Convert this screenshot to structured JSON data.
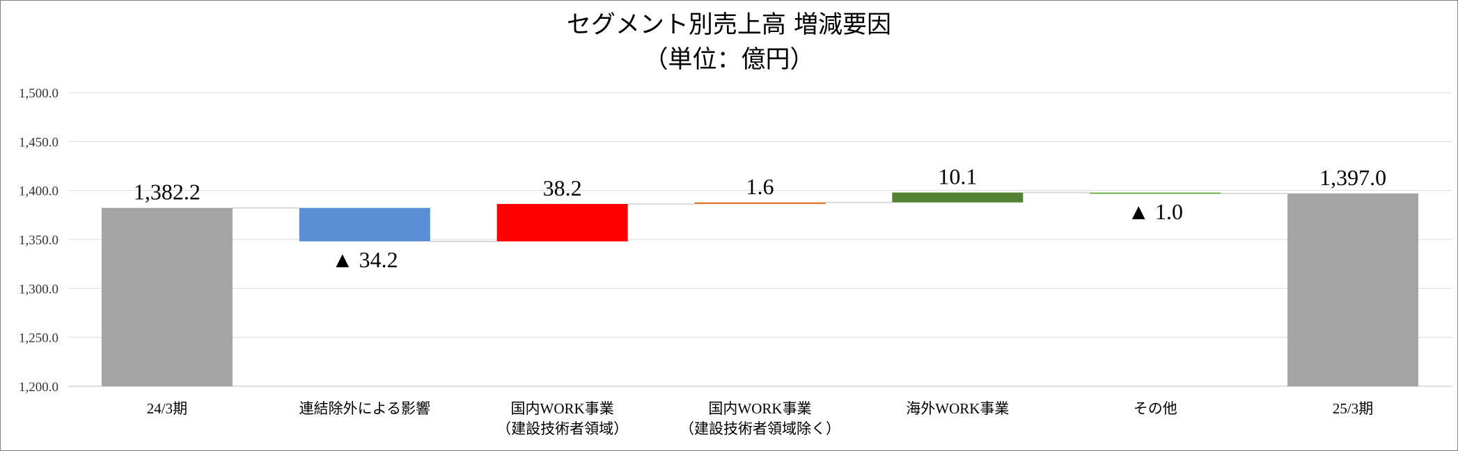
{
  "chart_data": {
    "type": "waterfall",
    "title": "セグメント別売上高  増減要因",
    "subtitle": "（単位：億円）",
    "ylim": [
      1200,
      1500
    ],
    "y_ticks": [
      "1,200.0",
      "1,250.0",
      "1,300.0",
      "1,350.0",
      "1,400.0",
      "1,450.0",
      "1,500.0"
    ],
    "grid": true,
    "colors": {
      "total": "#a5a5a5",
      "connector": "#d9d9d9",
      "gridline": "#d9d9d9",
      "axis": "#bfbfbf"
    },
    "items": [
      {
        "category": [
          "24/3期"
        ],
        "kind": "total",
        "value": 1382.2,
        "label": "1,382.2",
        "color": "#a5a5a5"
      },
      {
        "category": [
          "連結除外による影響"
        ],
        "kind": "delta",
        "value": -34.2,
        "label": "▲ 34.2",
        "color": "#5b8fd5"
      },
      {
        "category": [
          "国内WORK事業",
          "（建設技術者領域）"
        ],
        "kind": "delta",
        "value": 38.2,
        "label": "38.2",
        "color": "#ff0000"
      },
      {
        "category": [
          "国内WORK事業",
          "（建設技術者領域除く）"
        ],
        "kind": "delta",
        "value": 1.6,
        "label": "1.6",
        "color": "#e07020"
      },
      {
        "category": [
          "海外WORK事業"
        ],
        "kind": "delta",
        "value": 10.1,
        "label": "10.1",
        "color": "#548235"
      },
      {
        "category": [
          "その他"
        ],
        "kind": "delta",
        "value": -1.0,
        "label": "▲ 1.0",
        "color": "#70ad47"
      },
      {
        "category": [
          "25/3期"
        ],
        "kind": "total",
        "value": 1397.0,
        "label": "1,397.0",
        "color": "#a5a5a5"
      }
    ]
  }
}
